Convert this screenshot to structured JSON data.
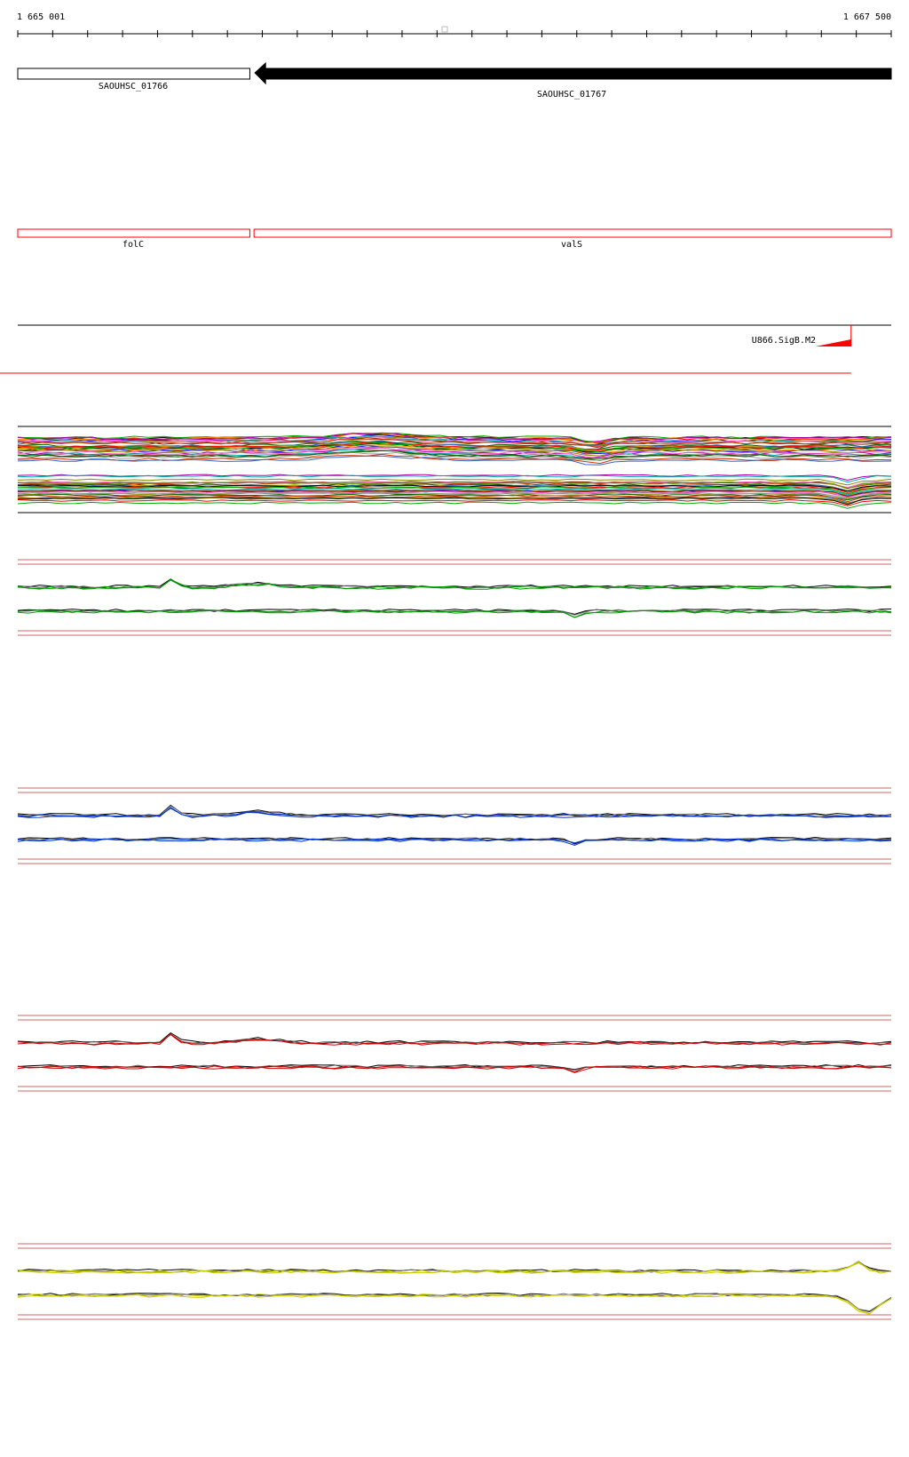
{
  "ruler": {
    "start_label": "1 665 001",
    "end_label": "1 667 500",
    "start": 1665001,
    "end": 1667500
  },
  "genes": [
    {
      "locus": "SAOUHSC_01766",
      "strand": "+",
      "start": 1665001,
      "end": 1665665
    },
    {
      "locus": "SAOUHSC_01767",
      "strand": "-",
      "start": 1665677,
      "end": 1667500
    }
  ],
  "gene_names": [
    {
      "name": "folC",
      "start": 1665001,
      "end": 1665665
    },
    {
      "name": "valS",
      "start": 1665677,
      "end": 1667500
    }
  ],
  "feature": {
    "label": "U866.SigB.M2",
    "position": 1667385
  },
  "colors": {
    "gene_outline": "#000000",
    "gene_fill_reverse": "#000000",
    "gene_name_outline": "#ff0000",
    "feature": "#ff0000",
    "track_bounds": "#cc6666",
    "track1": "#009900",
    "track2": "#0033cc",
    "track3": "#cc0000",
    "track4": "#cccc00",
    "overlay_black": "#000000",
    "overlay_gray": "#666666"
  },
  "multi_track": {
    "line_colors": [
      "#000000",
      "#ff0000",
      "#00aa00",
      "#0000ff",
      "#ff8800",
      "#aa00aa",
      "#00aaaa",
      "#888800",
      "#663300",
      "#ff66cc",
      "#999999",
      "#006600",
      "#cc3300",
      "#3366cc",
      "#669900",
      "#cc9900"
    ]
  },
  "expression_tracks": [
    {
      "name": "track-green",
      "color_key": "track1"
    },
    {
      "name": "track-blue",
      "color_key": "track2"
    },
    {
      "name": "track-red",
      "color_key": "track3"
    },
    {
      "name": "track-yellow",
      "color_key": "track4"
    }
  ]
}
